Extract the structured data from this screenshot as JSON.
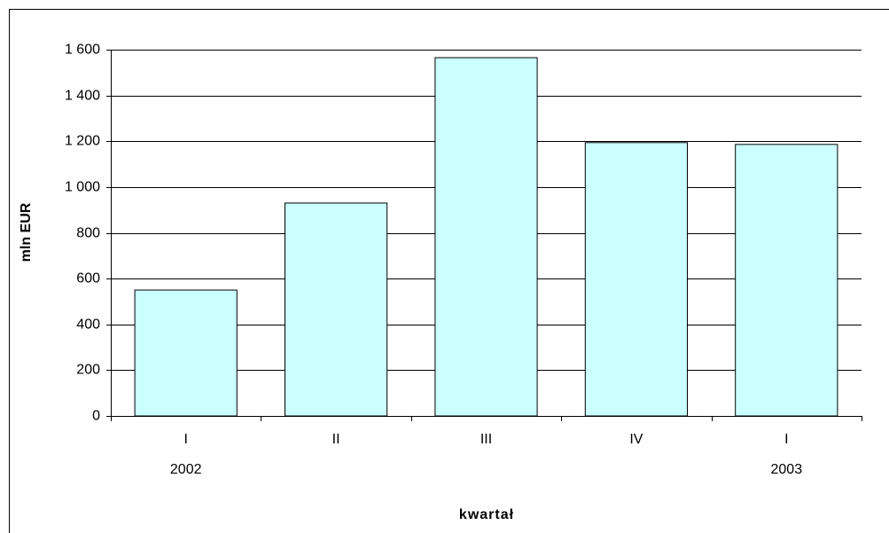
{
  "chart_data": {
    "type": "bar",
    "categories": [
      "I",
      "II",
      "III",
      "IV",
      "I"
    ],
    "year_labels": [
      "2002",
      null,
      null,
      null,
      "2003"
    ],
    "values": [
      550,
      930,
      1565,
      1194,
      1186
    ],
    "color": "#ccffff",
    "ylabel": "mln EUR",
    "xlabel": "kwartał",
    "ylim": [
      0,
      1600
    ],
    "yticks": [
      0,
      200,
      400,
      600,
      800,
      {
        "value": 1000,
        "label": "1 000"
      },
      {
        "value": 1200,
        "label": "1 200"
      },
      {
        "value": 1400,
        "label": "1 400"
      },
      {
        "value": 1600,
        "label": "1 600"
      }
    ],
    "grid": true
  }
}
